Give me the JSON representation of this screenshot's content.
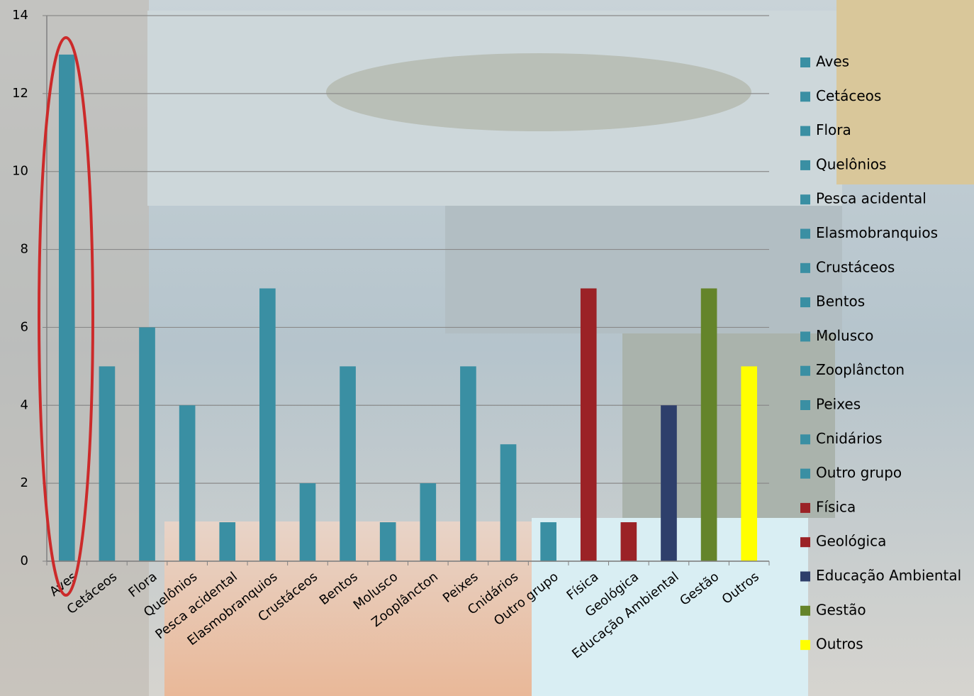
{
  "chart_data": {
    "type": "bar",
    "categories": [
      "Aves",
      "Cetáceos",
      "Flora",
      "Quelônios",
      "Pesca acidental",
      "Elasmobranquios",
      "Crustáceos",
      "Bentos",
      "Molusco",
      "Zooplâncton",
      "Peixes",
      "Cnidários",
      "Outro grupo",
      "Física",
      "Geológica",
      "Educação Ambiental",
      "Gestão",
      "Outros"
    ],
    "values": [
      13,
      5,
      6,
      4,
      1,
      7,
      2,
      5,
      1,
      2,
      5,
      3,
      1,
      7,
      1,
      4,
      7,
      5
    ],
    "colors": [
      "#3a8fa3",
      "#3a8fa3",
      "#3a8fa3",
      "#3a8fa3",
      "#3a8fa3",
      "#3a8fa3",
      "#3a8fa3",
      "#3a8fa3",
      "#3a8fa3",
      "#3a8fa3",
      "#3a8fa3",
      "#3a8fa3",
      "#3a8fa3",
      "#9b2226",
      "#9b2226",
      "#2e3f6b",
      "#64842a",
      "#ffff00"
    ],
    "ylim": [
      0,
      14
    ],
    "yticks": [
      0,
      2,
      4,
      6,
      8,
      10,
      12,
      14
    ],
    "grid": true,
    "legend": "right"
  }
}
